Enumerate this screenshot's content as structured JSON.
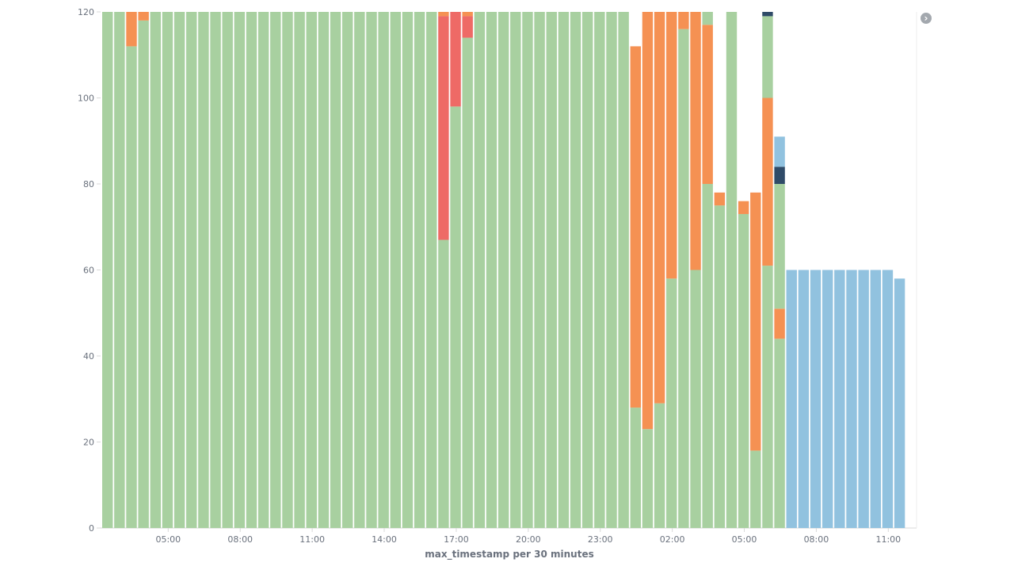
{
  "chart_data": {
    "type": "bar",
    "stacked": true,
    "xlabel": "max_timestamp per 30 minutes",
    "ylabel": "",
    "ylim": [
      0,
      120
    ],
    "yticks": [
      0,
      20,
      40,
      60,
      80,
      100,
      120
    ],
    "xticks": [
      {
        "label": "05:00",
        "index": 5.5
      },
      {
        "label": "08:00",
        "index": 11.5
      },
      {
        "label": "11:00",
        "index": 17.5
      },
      {
        "label": "14:00",
        "index": 23.5
      },
      {
        "label": "17:00",
        "index": 29.5
      },
      {
        "label": "20:00",
        "index": 35.5
      },
      {
        "label": "23:00",
        "index": 41.5
      },
      {
        "label": "02:00",
        "index": 47.5
      },
      {
        "label": "05:00",
        "index": 53.5
      },
      {
        "label": "08:00",
        "index": 59.5
      },
      {
        "label": "11:00",
        "index": 65.5
      }
    ],
    "grid": false,
    "legend": "collapsed",
    "colors": {
      "green": "#a8d0a0",
      "orange": "#f59153",
      "red": "#ee6a66",
      "navy": "#2f4b68",
      "blue": "#91c2df"
    },
    "bars": [
      [
        [
          "green",
          120
        ]
      ],
      [
        [
          "green",
          120
        ]
      ],
      [
        [
          "green",
          112
        ],
        [
          "orange",
          8
        ]
      ],
      [
        [
          "green",
          118
        ],
        [
          "orange",
          2
        ]
      ],
      [
        [
          "green",
          120
        ]
      ],
      [
        [
          "green",
          120
        ]
      ],
      [
        [
          "green",
          120
        ]
      ],
      [
        [
          "green",
          120
        ]
      ],
      [
        [
          "green",
          120
        ]
      ],
      [
        [
          "green",
          120
        ]
      ],
      [
        [
          "green",
          120
        ]
      ],
      [
        [
          "green",
          120
        ]
      ],
      [
        [
          "green",
          120
        ]
      ],
      [
        [
          "green",
          120
        ]
      ],
      [
        [
          "green",
          120
        ]
      ],
      [
        [
          "green",
          120
        ]
      ],
      [
        [
          "green",
          120
        ]
      ],
      [
        [
          "green",
          120
        ]
      ],
      [
        [
          "green",
          120
        ]
      ],
      [
        [
          "green",
          120
        ]
      ],
      [
        [
          "green",
          120
        ]
      ],
      [
        [
          "green",
          120
        ]
      ],
      [
        [
          "green",
          120
        ]
      ],
      [
        [
          "green",
          120
        ]
      ],
      [
        [
          "green",
          120
        ]
      ],
      [
        [
          "green",
          120
        ]
      ],
      [
        [
          "green",
          120
        ]
      ],
      [
        [
          "green",
          120
        ]
      ],
      [
        [
          "green",
          67
        ],
        [
          "red",
          52
        ],
        [
          "orange",
          1
        ]
      ],
      [
        [
          "green",
          98
        ],
        [
          "red",
          22
        ]
      ],
      [
        [
          "green",
          114
        ],
        [
          "red",
          5
        ],
        [
          "orange",
          1
        ]
      ],
      [
        [
          "green",
          120
        ]
      ],
      [
        [
          "green",
          120
        ]
      ],
      [
        [
          "green",
          120
        ]
      ],
      [
        [
          "green",
          120
        ]
      ],
      [
        [
          "green",
          120
        ]
      ],
      [
        [
          "green",
          120
        ]
      ],
      [
        [
          "green",
          120
        ]
      ],
      [
        [
          "green",
          120
        ]
      ],
      [
        [
          "green",
          120
        ]
      ],
      [
        [
          "green",
          120
        ]
      ],
      [
        [
          "green",
          120
        ]
      ],
      [
        [
          "green",
          120
        ]
      ],
      [
        [
          "green",
          120
        ]
      ],
      [
        [
          "green",
          28
        ],
        [
          "orange",
          84
        ]
      ],
      [
        [
          "green",
          23
        ],
        [
          "orange",
          97
        ]
      ],
      [
        [
          "green",
          29
        ],
        [
          "orange",
          91
        ]
      ],
      [
        [
          "green",
          58
        ],
        [
          "orange",
          62
        ]
      ],
      [
        [
          "green",
          116
        ],
        [
          "orange",
          4
        ]
      ],
      [
        [
          "green",
          60
        ],
        [
          "orange",
          60
        ]
      ],
      [
        [
          "green",
          80
        ],
        [
          "orange",
          37
        ],
        [
          "green",
          3
        ]
      ],
      [
        [
          "green",
          75
        ],
        [
          "orange",
          3
        ]
      ],
      [
        [
          "green",
          120
        ]
      ],
      [
        [
          "green",
          73
        ],
        [
          "orange",
          3
        ]
      ],
      [
        [
          "green",
          18
        ],
        [
          "orange",
          60
        ]
      ],
      [
        [
          "green",
          61
        ],
        [
          "orange",
          39
        ],
        [
          "green",
          19
        ],
        [
          "navy",
          1
        ]
      ],
      [
        [
          "green",
          44
        ],
        [
          "orange",
          7
        ],
        [
          "green",
          29
        ],
        [
          "navy",
          4
        ],
        [
          "blue",
          7
        ]
      ],
      [
        [
          "blue",
          60
        ]
      ],
      [
        [
          "blue",
          60
        ]
      ],
      [
        [
          "blue",
          60
        ]
      ],
      [
        [
          "blue",
          60
        ]
      ],
      [
        [
          "blue",
          60
        ]
      ],
      [
        [
          "blue",
          60
        ]
      ],
      [
        [
          "blue",
          60
        ]
      ],
      [
        [
          "blue",
          60
        ]
      ],
      [
        [
          "blue",
          60
        ]
      ],
      [
        [
          "blue",
          58
        ]
      ]
    ]
  },
  "ui": {
    "legend_toggle_icon": "chevron-right-icon",
    "legend_toggle_glyph": "›"
  }
}
